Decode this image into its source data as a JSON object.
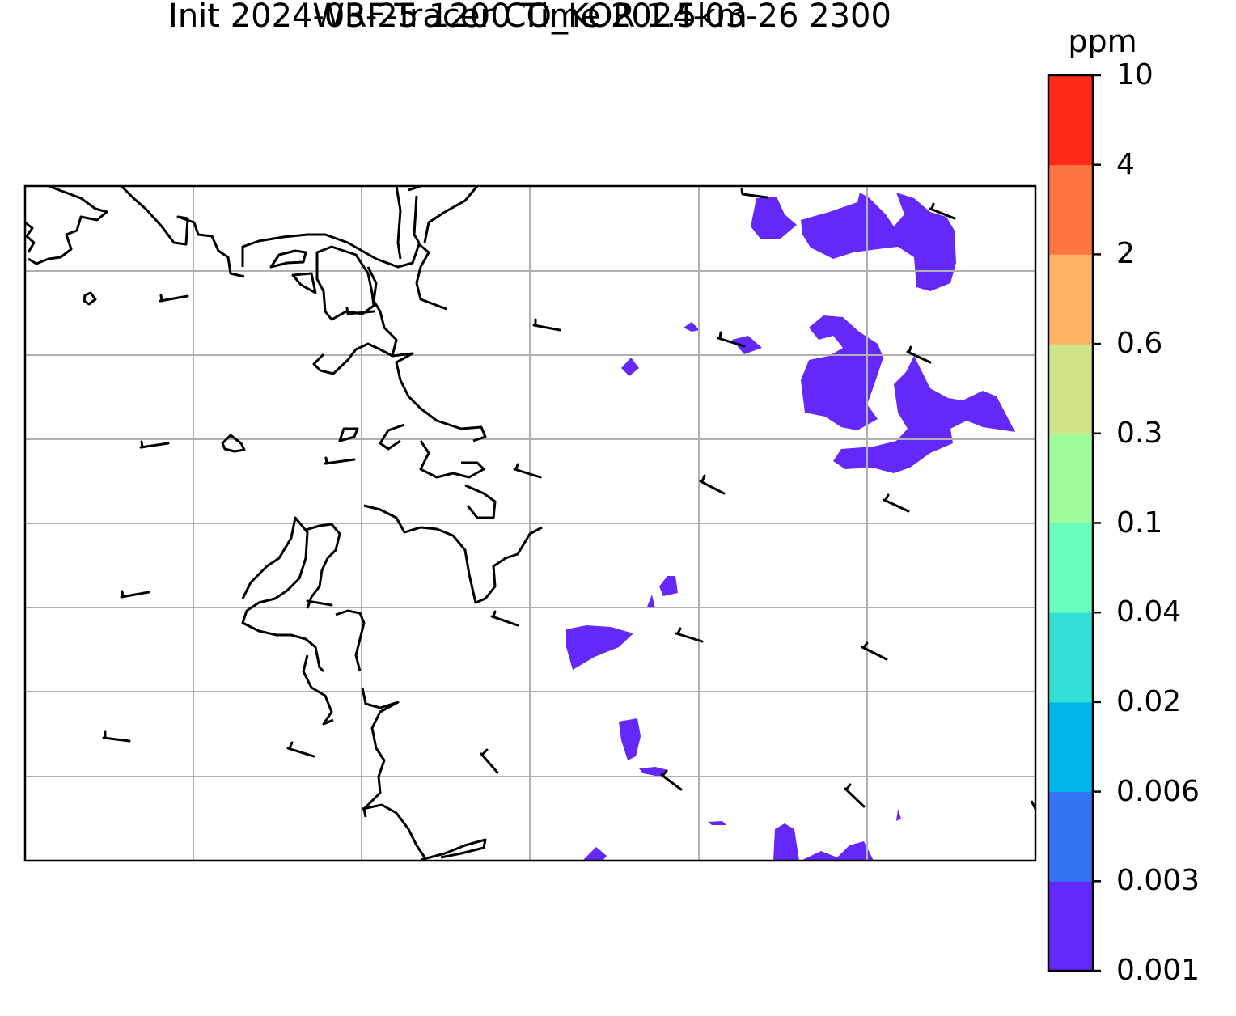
{
  "title": {
    "line1": "WRF-Tracer CO_KOR 1.5km",
    "line2": "Init 2024-03-25 1200 Time 2024-03-26 2300"
  },
  "colorbar": {
    "unit": "ppm",
    "levels": [
      "0.001",
      "0.003",
      "0.006",
      "0.02",
      "0.04",
      "0.1",
      "0.3",
      "0.6",
      "2",
      "4",
      "10"
    ],
    "colors": [
      "#6428f8",
      "#3474f2",
      "#00b4ea",
      "#32e0d8",
      "#6afcbe",
      "#9efc9c",
      "#cfe388",
      "#ffb262",
      "#ff7642",
      "#ff2a1a"
    ]
  },
  "map": {
    "field": "CO tracer concentration",
    "shown_color": "#6428f8",
    "gridlines": true,
    "overlays": [
      "coastline",
      "wind-barbs"
    ]
  }
}
